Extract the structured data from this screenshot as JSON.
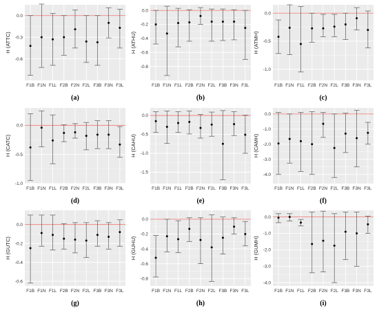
{
  "colors": {
    "panel_bg": "#ebebeb",
    "grid": "#ffffff",
    "zero_line": "#f08080",
    "error_bar": "#555555",
    "point": "#000000"
  },
  "chart_data": [
    {
      "id": "a",
      "type": "scatter",
      "panel_label": "(a)",
      "ylabel": "H (ATTC)",
      "categories": [
        "F1B",
        "F1N",
        "F1L",
        "F2B",
        "F2N",
        "F2L",
        "F3B",
        "F3N",
        "F3L"
      ],
      "ylim": [
        -0.9,
        0.15
      ],
      "yticks": [
        0,
        -0.3,
        -0.6
      ],
      "ytick_labels": [
        "0.0",
        "-0.3",
        "-0.6"
      ],
      "values": [
        -0.42,
        -0.3,
        -0.33,
        -0.3,
        -0.19,
        -0.36,
        -0.37,
        -0.1,
        -0.17
      ],
      "lower": [
        -0.83,
        -0.72,
        -0.69,
        -0.55,
        -0.45,
        -0.65,
        -0.69,
        -0.31,
        -0.45
      ],
      "upper": [
        0.0,
        0.16,
        0.03,
        0.0,
        0.08,
        0.0,
        0.0,
        0.11,
        0.09
      ],
      "reference_line": 0
    },
    {
      "id": "b",
      "type": "scatter",
      "panel_label": "(b)",
      "ylabel": "H (ATHU)",
      "categories": [
        "F1B",
        "F1N",
        "F1L",
        "F2B",
        "F2N",
        "F2L",
        "F3B",
        "F3N",
        "F3L"
      ],
      "ylim": [
        -1.0,
        0.08
      ],
      "yticks": [
        0,
        -0.2,
        -0.4,
        -0.6,
        -0.8
      ],
      "ytick_labels": [
        "0.0",
        "-0.2",
        "-0.4",
        "-0.6",
        "-0.8"
      ],
      "values": [
        -0.2,
        -0.33,
        -0.18,
        -0.17,
        -0.08,
        -0.16,
        -0.16,
        -0.16,
        -0.25
      ],
      "lower": [
        -0.48,
        -0.93,
        -0.52,
        -0.44,
        -0.2,
        -0.44,
        -0.43,
        -0.42,
        -0.7
      ],
      "upper": [
        0.0,
        0.06,
        0.03,
        0.01,
        0.04,
        0.02,
        0.02,
        0.01,
        0.0
      ],
      "reference_line": 0
    },
    {
      "id": "c",
      "type": "scatter",
      "panel_label": "(c)",
      "ylabel": "H (ATMH)",
      "categories": [
        "F1B",
        "F1N",
        "F1L",
        "F2B",
        "F2N",
        "F2L",
        "F3B",
        "F3N",
        "F3L"
      ],
      "ylim": [
        -1.2,
        0.15
      ],
      "yticks": [
        0,
        -0.5,
        -1.0
      ],
      "ytick_labels": [
        "0.0",
        "-0.5",
        "-1.0"
      ],
      "values": [
        -0.42,
        -0.26,
        -0.55,
        -0.27,
        -0.27,
        -0.24,
        -0.2,
        -0.09,
        -0.3
      ],
      "lower": [
        -0.72,
        -0.74,
        -1.05,
        -0.52,
        -0.42,
        -0.42,
        -0.47,
        -0.3,
        -0.62
      ],
      "upper": [
        -0.12,
        0.15,
        0.12,
        0.0,
        -0.02,
        -0.02,
        0.0,
        0.1,
        0.04
      ],
      "reference_line": 0
    },
    {
      "id": "d",
      "type": "scatter",
      "panel_label": "(d)",
      "ylabel": "H (CATC)",
      "categories": [
        "F1B",
        "F1N",
        "F1L",
        "F2B",
        "F2N",
        "F2L",
        "F3B",
        "F3N",
        "F3L"
      ],
      "ylim": [
        -1.0,
        0.3
      ],
      "yticks": [
        0,
        -0.5,
        -1.0
      ],
      "ytick_labels": [
        "0.0",
        "-0.5",
        "-1.0"
      ],
      "values": [
        -0.38,
        -0.04,
        -0.26,
        -0.13,
        -0.12,
        -0.18,
        -0.16,
        -0.16,
        -0.33
      ],
      "lower": [
        -0.95,
        -0.37,
        -0.66,
        -0.28,
        -0.22,
        -0.42,
        -0.4,
        -0.4,
        -0.55
      ],
      "upper": [
        0.2,
        0.25,
        0.18,
        0.01,
        0.03,
        0.05,
        0.08,
        0.08,
        -0.02
      ],
      "reference_line": 0
    },
    {
      "id": "e",
      "type": "scatter",
      "panel_label": "(e)",
      "ylabel": "H (CAHU)",
      "categories": [
        "F1B",
        "F1N",
        "F1L",
        "F2B",
        "F2N",
        "F2L",
        "F3B",
        "F3N",
        "F3L"
      ],
      "ylim": [
        -1.8,
        0.2
      ],
      "yticks": [
        0,
        -0.5,
        -1.0,
        -1.5
      ],
      "ytick_labels": [
        "0.0",
        "-0.5",
        "-1.0",
        "-1.5"
      ],
      "values": [
        -0.15,
        -0.3,
        -0.2,
        -0.17,
        -0.33,
        -0.24,
        -0.75,
        -0.23,
        -0.51
      ],
      "lower": [
        -0.45,
        -0.74,
        -0.45,
        -0.49,
        -0.6,
        -0.55,
        -1.7,
        -0.53,
        -1.0
      ],
      "upper": [
        0.1,
        0.12,
        0.1,
        0.12,
        0.03,
        0.09,
        0.13,
        0.1,
        0.01
      ],
      "reference_line": 0
    },
    {
      "id": "f",
      "type": "scatter",
      "panel_label": "(f)",
      "ylabel": "H (CAMH)",
      "categories": [
        "F1B",
        "F1N",
        "F1L",
        "F2B",
        "F2N",
        "F2L",
        "F3B",
        "F3N",
        "F3L"
      ],
      "ylim": [
        -4.6,
        0.4
      ],
      "yticks": [
        0,
        -1.0,
        -2.0,
        -3.0,
        -4.0
      ],
      "ytick_labels": [
        "0.0",
        "-1.0",
        "-2.0",
        "-3.0",
        "-4.0"
      ],
      "values": [
        -1.95,
        -1.65,
        -1.8,
        -2.0,
        -0.65,
        -2.25,
        -1.3,
        -1.6,
        -1.25
      ],
      "lower": [
        -4.0,
        -3.25,
        -3.8,
        -4.0,
        -1.55,
        -4.2,
        -2.55,
        -3.5,
        -2.0
      ],
      "upper": [
        0.1,
        0.0,
        0.1,
        0.15,
        0.1,
        0.0,
        0.05,
        0.25,
        -0.55
      ],
      "reference_line": 0
    },
    {
      "id": "g",
      "type": "scatter",
      "panel_label": "(g)",
      "ylabel": "H (GUTC)",
      "categories": [
        "F1B",
        "F1N",
        "F1L",
        "F2B",
        "F2N",
        "F2L",
        "F3B",
        "F3N",
        "F3L"
      ],
      "ylim": [
        -0.65,
        0.15
      ],
      "yticks": [
        0,
        -0.2,
        -0.4,
        -0.6
      ],
      "ytick_labels": [
        "0.0",
        "-0.2",
        "-0.4",
        "-0.6"
      ],
      "values": [
        -0.25,
        -0.09,
        -0.11,
        -0.15,
        -0.16,
        -0.17,
        -0.11,
        -0.13,
        -0.08
      ],
      "lower": [
        -0.62,
        -0.23,
        -0.27,
        -0.26,
        -0.3,
        -0.35,
        -0.23,
        -0.26,
        -0.23
      ],
      "upper": [
        0.1,
        0.1,
        0.1,
        0.01,
        0.02,
        0.02,
        0.04,
        0.02,
        0.05
      ],
      "reference_line": 0
    },
    {
      "id": "h",
      "type": "scatter",
      "panel_label": "(h)",
      "ylabel": "H (GUHU)",
      "categories": [
        "F1B",
        "F1N",
        "F1L",
        "F2B",
        "F2N",
        "F2L",
        "F3B",
        "F3N",
        "F3L"
      ],
      "ylim": [
        -0.9,
        0.12
      ],
      "yticks": [
        0,
        -0.2,
        -0.4,
        -0.6,
        -0.8
      ],
      "ytick_labels": [
        "0.0",
        "-0.2",
        "-0.4",
        "-0.6",
        "-0.8"
      ],
      "values": [
        -0.52,
        -0.23,
        -0.27,
        -0.13,
        -0.28,
        -0.38,
        -0.25,
        -0.1,
        -0.2
      ],
      "lower": [
        -0.78,
        -0.44,
        -0.45,
        -0.3,
        -0.6,
        -0.84,
        -0.47,
        -0.2,
        -0.36
      ],
      "upper": [
        -0.22,
        0.0,
        -0.02,
        0.02,
        0.02,
        0.06,
        0.03,
        0.02,
        -0.03
      ],
      "reference_line": 0
    },
    {
      "id": "i",
      "type": "scatter",
      "panel_label": "(i)",
      "ylabel": "H (GUMH)",
      "categories": [
        "F1B",
        "F1N",
        "F1L",
        "F2B",
        "F2N",
        "F2L",
        "F3B",
        "F3N",
        "F3L"
      ],
      "ylim": [
        -4.2,
        0.4
      ],
      "yticks": [
        0,
        -1.0,
        -2.0,
        -3.0,
        -4.0
      ],
      "ytick_labels": [
        "0.0",
        "-1.0",
        "-2.0",
        "-3.0",
        "-4.0"
      ],
      "values": [
        -0.05,
        0.0,
        -0.35,
        -1.65,
        -1.45,
        -1.75,
        -0.9,
        -1.0,
        -0.45
      ],
      "lower": [
        -0.35,
        -0.25,
        -0.55,
        -3.4,
        -3.35,
        -4.0,
        -2.6,
        -3.0,
        -1.0
      ],
      "upper": [
        0.2,
        0.2,
        -0.15,
        0.3,
        0.35,
        0.2,
        0.3,
        0.3,
        0.05
      ],
      "reference_line": 0
    }
  ]
}
